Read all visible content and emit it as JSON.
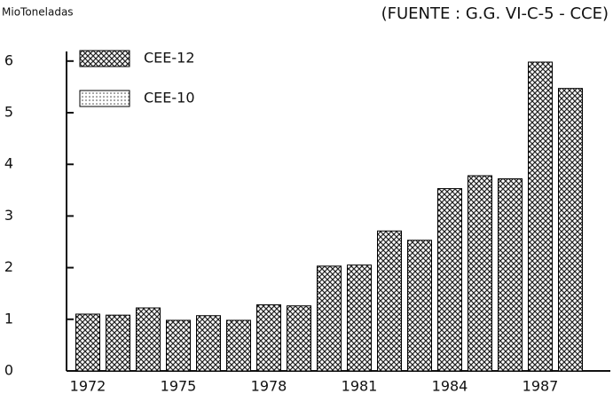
{
  "chart_data": {
    "type": "bar",
    "title": "(FUENTE : G.G. VI-C-5 - CCE)",
    "y_label": "MioToneladas",
    "categories": [
      "1972",
      null,
      null,
      "1975",
      null,
      null,
      "1978",
      null,
      null,
      "1981",
      null,
      null,
      "1984",
      null,
      null,
      "1987",
      null
    ],
    "series": [
      {
        "name": "CEE-12",
        "color": "#000000",
        "values": [
          1.1,
          1.08,
          1.22,
          0.98,
          1.07,
          0.98,
          1.28,
          1.26,
          2.03,
          2.05,
          2.71,
          2.53,
          3.53,
          3.78,
          3.72,
          5.98,
          5.47
        ]
      },
      {
        "name": "CEE-10",
        "color": "#000000",
        "values": [
          null,
          null,
          null,
          null,
          null,
          null,
          null,
          null,
          null,
          null,
          null,
          null,
          null,
          null,
          null,
          null,
          null
        ]
      }
    ],
    "ylim": [
      0,
      6.1
    ],
    "yticks": [
      0,
      1,
      2,
      3,
      4,
      5,
      6
    ],
    "grid": false,
    "legend": "upper left"
  }
}
